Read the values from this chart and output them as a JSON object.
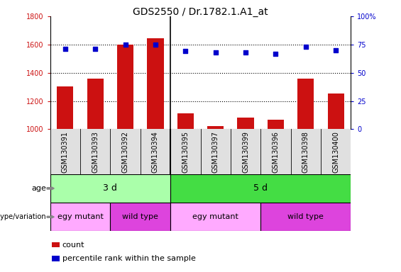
{
  "title": "GDS2550 / Dr.1782.1.A1_at",
  "samples": [
    "GSM130391",
    "GSM130393",
    "GSM130392",
    "GSM130394",
    "GSM130395",
    "GSM130397",
    "GSM130399",
    "GSM130396",
    "GSM130398",
    "GSM130400"
  ],
  "counts": [
    1305,
    1358,
    1600,
    1645,
    1113,
    1020,
    1080,
    1065,
    1360,
    1255
  ],
  "percentile_ranks": [
    71,
    71,
    75,
    75,
    69,
    68,
    68,
    67,
    73,
    70
  ],
  "ylim_left": [
    1000,
    1800
  ],
  "ylim_right": [
    0,
    100
  ],
  "yticks_left": [
    1000,
    1200,
    1400,
    1600,
    1800
  ],
  "yticks_right": [
    0,
    25,
    50,
    75,
    100
  ],
  "bar_color": "#cc1111",
  "dot_color": "#0000cc",
  "age_groups": [
    {
      "label": "3 d",
      "start": 0,
      "end": 4,
      "color": "#aaffaa"
    },
    {
      "label": "5 d",
      "start": 4,
      "end": 10,
      "color": "#44dd44"
    }
  ],
  "genotype_groups": [
    {
      "label": "egy mutant",
      "start": 0,
      "end": 2,
      "color": "#ffaaff"
    },
    {
      "label": "wild type",
      "start": 2,
      "end": 4,
      "color": "#dd44dd"
    },
    {
      "label": "egy mutant",
      "start": 4,
      "end": 7,
      "color": "#ffaaff"
    },
    {
      "label": "wild type",
      "start": 7,
      "end": 10,
      "color": "#dd44dd"
    }
  ],
  "legend_items": [
    {
      "label": "count",
      "color": "#cc1111"
    },
    {
      "label": "percentile rank within the sample",
      "color": "#0000cc"
    }
  ],
  "separator_after": 3,
  "label_fontsize": 8,
  "tick_fontsize": 7,
  "title_fontsize": 10
}
